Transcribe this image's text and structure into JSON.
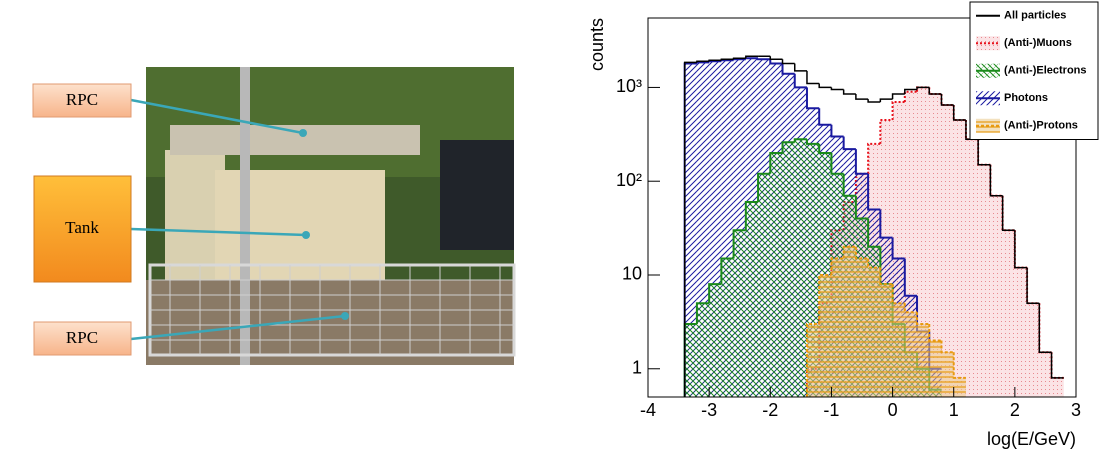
{
  "photo_labels": [
    "RPC",
    "Tank",
    "RPC"
  ],
  "chart_data": {
    "type": "histogram",
    "x_label": "log(E/GeV)",
    "y_label": "counts",
    "log_y": true,
    "legend": "upper right",
    "xlim": [
      -4,
      3
    ],
    "xticks": [
      -4,
      -3,
      -2,
      -1,
      0,
      1,
      2,
      3
    ],
    "ylim": [
      0.5,
      5500
    ],
    "yticks": [
      1,
      10,
      {
        "value": 100,
        "label": "10²"
      },
      {
        "value": 1000,
        "label": "10³"
      }
    ],
    "bins": [
      -3.4,
      -3.2,
      -3.0,
      -2.8,
      -2.6,
      -2.4,
      -2.2,
      -2.0,
      -1.8,
      -1.6,
      -1.4,
      -1.2,
      -1.0,
      -0.8,
      -0.6,
      -0.4,
      -0.2,
      0.0,
      0.2,
      0.4,
      0.6,
      0.8,
      1.0,
      1.2,
      1.4,
      1.6,
      1.8,
      2.0,
      2.2,
      2.4,
      2.6,
      2.8
    ],
    "series": [
      {
        "name": "All particles",
        "color": "#000000",
        "values": [
          1850,
          1900,
          1950,
          2000,
          2050,
          2150,
          2150,
          2000,
          1800,
          1500,
          1100,
          1000,
          950,
          850,
          750,
          700,
          750,
          850,
          950,
          1000,
          850,
          650,
          450,
          280,
          150,
          70,
          30,
          12,
          5,
          1.5,
          0.8
        ]
      },
      {
        "name": "(Anti-)Muons",
        "color": "#e8101a",
        "values": [
          null,
          null,
          null,
          null,
          null,
          null,
          null,
          null,
          null,
          null,
          1,
          5,
          30,
          60,
          120,
          250,
          450,
          700,
          900,
          1000,
          850,
          650,
          450,
          280,
          150,
          70,
          30,
          12,
          5,
          1.5,
          0.8
        ]
      },
      {
        "name": "(Anti-)Electrons",
        "color": "#1a8a1a",
        "values": [
          3,
          5,
          8,
          15,
          30,
          60,
          120,
          200,
          260,
          280,
          250,
          200,
          120,
          70,
          40,
          20,
          8,
          3,
          1.5,
          1,
          0.6,
          null,
          null,
          null,
          null,
          null,
          null,
          null,
          null,
          null,
          null
        ]
      },
      {
        "name": "Photons",
        "color": "#1a1aa0",
        "values": [
          1800,
          1850,
          1900,
          1950,
          2000,
          2050,
          2000,
          1800,
          1400,
          1000,
          600,
          400,
          300,
          220,
          120,
          50,
          25,
          15,
          6,
          2.5,
          1,
          null,
          null,
          null,
          null,
          null,
          null,
          null,
          null,
          null,
          null
        ]
      },
      {
        "name": "(Anti-)Protons",
        "color": "#e89a10",
        "values": [
          null,
          null,
          null,
          null,
          null,
          null,
          null,
          null,
          null,
          null,
          3,
          10,
          15,
          20,
          15,
          12,
          8,
          5,
          4,
          3,
          2,
          1.5,
          0.8,
          null,
          null,
          null,
          null,
          null,
          null,
          null,
          null
        ]
      }
    ]
  }
}
